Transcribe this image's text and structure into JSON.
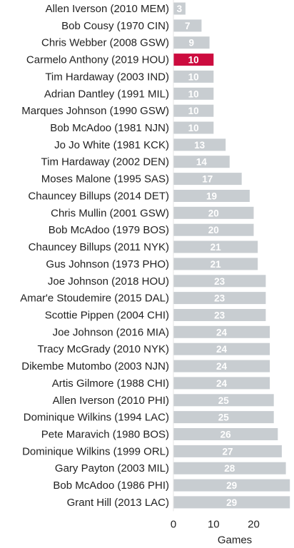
{
  "chart_data": {
    "type": "bar",
    "orientation": "horizontal",
    "categories": [
      "Allen Iverson (2010 MEM)",
      "Bob Cousy (1970 CIN)",
      "Chris Webber (2008 GSW)",
      "Carmelo Anthony (2019 HOU)",
      "Tim Hardaway (2003 IND)",
      "Adrian Dantley (1991 MIL)",
      "Marques Johnson (1990 GSW)",
      "Bob McAdoo (1981 NJN)",
      "Jo Jo White (1981 KCK)",
      "Tim Hardaway (2002 DEN)",
      "Moses Malone (1995 SAS)",
      "Chauncey Billups (2014 DET)",
      "Chris Mullin (2001 GSW)",
      "Bob McAdoo (1979 BOS)",
      "Chauncey Billups (2011 NYK)",
      "Gus Johnson (1973 PHO)",
      "Joe Johnson (2018 HOU)",
      "Amar'e Stoudemire (2015 DAL)",
      "Scottie Pippen (2004 CHI)",
      "Joe Johnson (2016 MIA)",
      "Tracy McGrady (2010 NYK)",
      "Dikembe Mutombo (2003 NJN)",
      "Artis Gilmore (1988 CHI)",
      "Allen Iverson (2010 PHI)",
      "Dominique Wilkins (1994 LAC)",
      "Pete Maravich (1980 BOS)",
      "Dominique Wilkins (1999 ORL)",
      "Gary Payton (2003 MIL)",
      "Bob McAdoo (1986 PHI)",
      "Grant Hill (2013 LAC)"
    ],
    "values": [
      3,
      7,
      9,
      10,
      10,
      10,
      10,
      10,
      13,
      14,
      17,
      19,
      20,
      20,
      21,
      21,
      23,
      23,
      23,
      24,
      24,
      24,
      24,
      25,
      25,
      26,
      27,
      28,
      29,
      29
    ],
    "highlight": "Carmelo Anthony (2019 HOU)",
    "colors": {
      "bar": "#c8cdd1",
      "highlight": "#cc0c3f",
      "label": "#ffffff"
    },
    "xlabel": "Games",
    "ylabel": "",
    "xlim": [
      0,
      29.5
    ],
    "xticks": [
      0,
      10,
      20
    ],
    "grid": false
  }
}
